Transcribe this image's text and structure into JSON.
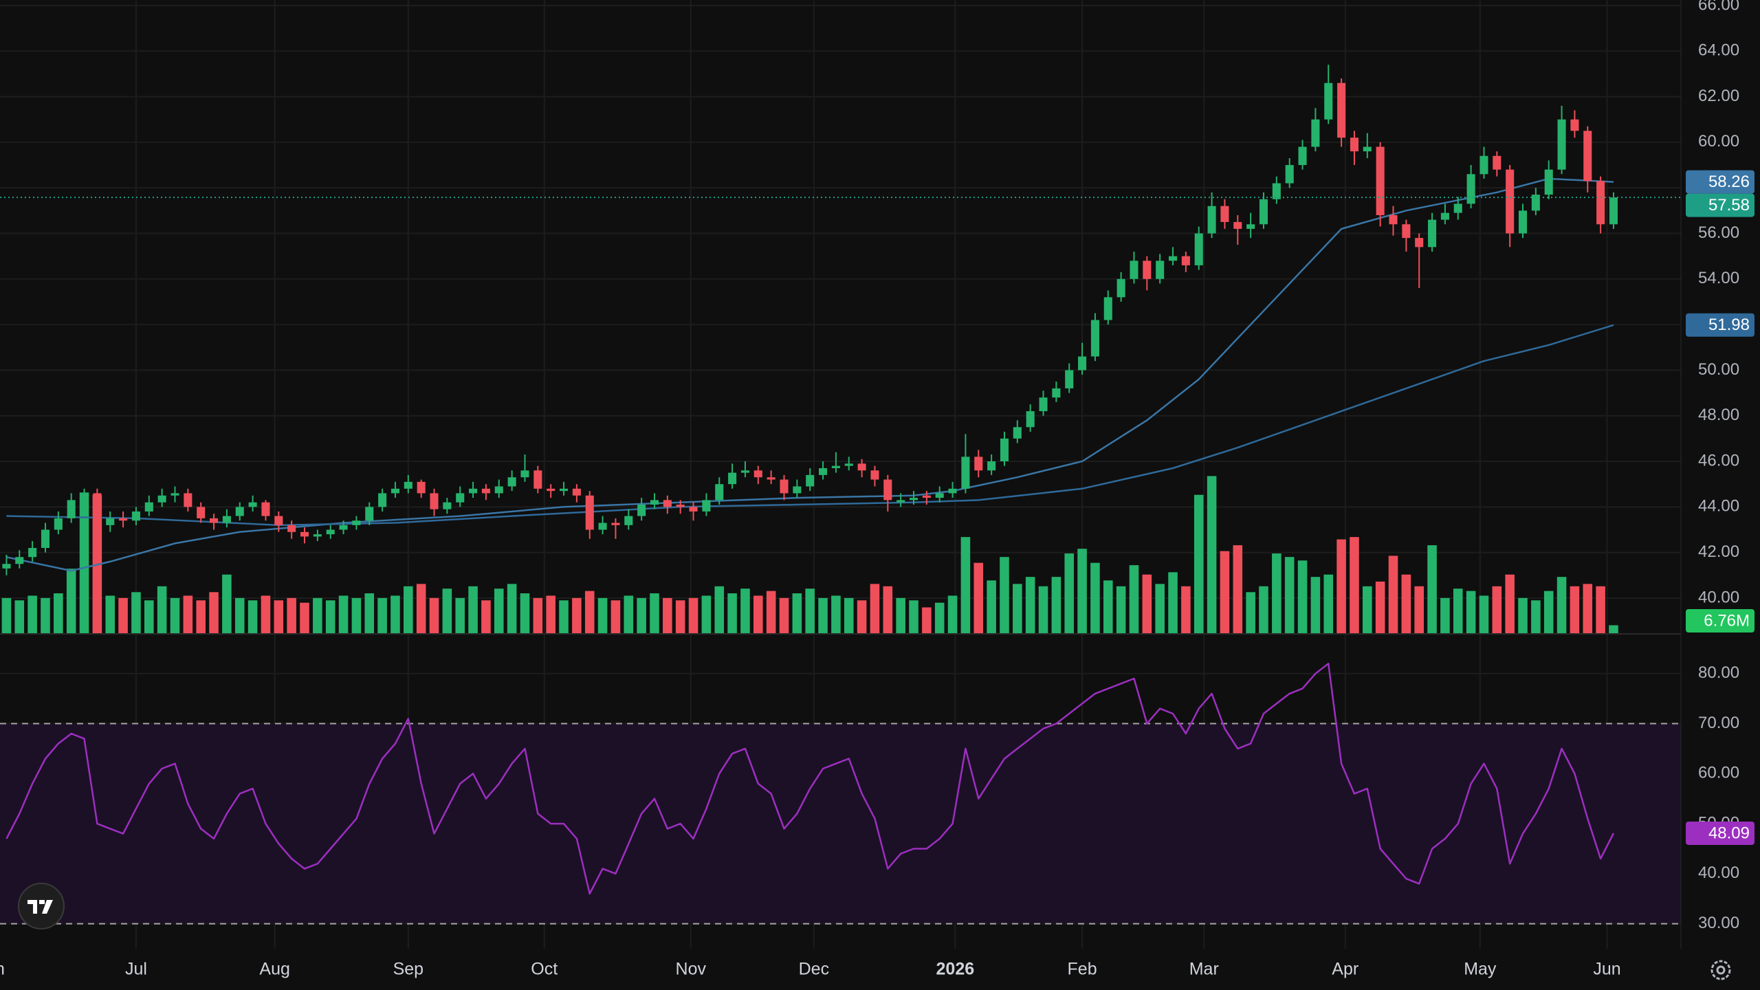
{
  "chart_data": {
    "type": "candlestick",
    "up_color": "#26b36c",
    "down_color": "#ef4f5a",
    "grid": true,
    "xlim": [
      -0.5,
      129.2
    ],
    "xticks": [
      {
        "value": -1.2,
        "label": "Jun"
      },
      {
        "value": 10,
        "label": "Jul"
      },
      {
        "value": 20.7,
        "label": "Aug"
      },
      {
        "value": 31,
        "label": "Sep"
      },
      {
        "value": 41.5,
        "label": "Oct"
      },
      {
        "value": 52.8,
        "label": "Nov"
      },
      {
        "value": 62.3,
        "label": "Dec"
      },
      {
        "value": 73.2,
        "label": "2026"
      },
      {
        "value": 83,
        "label": "Feb"
      },
      {
        "value": 92.4,
        "label": "Mar"
      },
      {
        "value": 103.3,
        "label": "Apr"
      },
      {
        "value": 113.7,
        "label": "May"
      },
      {
        "value": 123.5,
        "label": "Jun"
      }
    ],
    "ylim": [
      38.46,
      66.24
    ],
    "yticks": [
      {
        "value": 40,
        "label": "40.00"
      },
      {
        "value": 42,
        "label": "42.00"
      },
      {
        "value": 44,
        "label": "44.00"
      },
      {
        "value": 46,
        "label": "46.00"
      },
      {
        "value": 48,
        "label": "48.00"
      },
      {
        "value": 50,
        "label": "50.00"
      },
      {
        "value": 52,
        "label": "52.00"
      },
      {
        "value": 54,
        "label": "54.00"
      },
      {
        "value": 56,
        "label": "56.00"
      },
      {
        "value": 58,
        "label": "58.00"
      },
      {
        "value": 60,
        "label": "60.00"
      },
      {
        "value": 62,
        "label": "62.00"
      },
      {
        "value": 64,
        "label": "64.00"
      },
      {
        "value": 66,
        "label": "66.00"
      }
    ],
    "last_price_color": "#1f9e86",
    "candles": [
      [
        41.3,
        41.9,
        41.0,
        41.5
      ],
      [
        41.5,
        42.1,
        41.3,
        41.8
      ],
      [
        41.8,
        42.5,
        41.6,
        42.2
      ],
      [
        42.2,
        43.3,
        42.0,
        43.0
      ],
      [
        43.0,
        43.8,
        42.8,
        43.5
      ],
      [
        43.5,
        44.6,
        43.3,
        44.3
      ],
      [
        44.3,
        44.8,
        44.0,
        44.6
      ],
      [
        44.6,
        44.8,
        42.8,
        43.2
      ],
      [
        43.2,
        43.8,
        42.9,
        43.5
      ],
      [
        43.5,
        43.8,
        43.1,
        43.4
      ],
      [
        43.4,
        44.0,
        43.2,
        43.8
      ],
      [
        43.8,
        44.5,
        43.6,
        44.2
      ],
      [
        44.2,
        44.8,
        44.0,
        44.5
      ],
      [
        44.5,
        44.9,
        44.2,
        44.6
      ],
      [
        44.6,
        44.8,
        43.8,
        44.0
      ],
      [
        44.0,
        44.2,
        43.3,
        43.5
      ],
      [
        43.5,
        43.7,
        43.0,
        43.3
      ],
      [
        43.3,
        43.9,
        43.1,
        43.6
      ],
      [
        43.6,
        44.2,
        43.4,
        44.0
      ],
      [
        44.0,
        44.5,
        43.8,
        44.2
      ],
      [
        44.2,
        44.3,
        43.4,
        43.6
      ],
      [
        43.6,
        43.8,
        42.9,
        43.2
      ],
      [
        43.2,
        43.4,
        42.6,
        42.9
      ],
      [
        42.9,
        43.1,
        42.4,
        42.7
      ],
      [
        42.7,
        43.0,
        42.5,
        42.8
      ],
      [
        42.8,
        43.2,
        42.6,
        43.0
      ],
      [
        43.0,
        43.4,
        42.8,
        43.2
      ],
      [
        43.2,
        43.6,
        43.0,
        43.4
      ],
      [
        43.4,
        44.2,
        43.2,
        44.0
      ],
      [
        44.0,
        44.8,
        43.8,
        44.6
      ],
      [
        44.6,
        45.1,
        44.4,
        44.8
      ],
      [
        44.8,
        45.4,
        44.6,
        45.1
      ],
      [
        45.1,
        45.2,
        44.4,
        44.6
      ],
      [
        44.6,
        44.8,
        43.6,
        43.9
      ],
      [
        43.9,
        44.4,
        43.7,
        44.2
      ],
      [
        44.2,
        44.9,
        44.0,
        44.6
      ],
      [
        44.6,
        45.1,
        44.4,
        44.8
      ],
      [
        44.8,
        45.0,
        44.3,
        44.6
      ],
      [
        44.6,
        45.2,
        44.4,
        44.9
      ],
      [
        44.9,
        45.6,
        44.7,
        45.3
      ],
      [
        45.3,
        46.3,
        45.1,
        45.6
      ],
      [
        45.6,
        45.8,
        44.6,
        44.8
      ],
      [
        44.8,
        45.0,
        44.4,
        44.7
      ],
      [
        44.7,
        45.1,
        44.5,
        44.8
      ],
      [
        44.8,
        45.0,
        44.2,
        44.5
      ],
      [
        44.5,
        44.7,
        42.6,
        43.0
      ],
      [
        43.0,
        43.6,
        42.8,
        43.3
      ],
      [
        43.3,
        43.5,
        42.6,
        43.2
      ],
      [
        43.2,
        43.9,
        43.0,
        43.6
      ],
      [
        43.6,
        44.4,
        43.4,
        44.1
      ],
      [
        44.1,
        44.6,
        43.9,
        44.3
      ],
      [
        44.3,
        44.5,
        43.7,
        44.0
      ],
      [
        44.1,
        44.3,
        43.7,
        44.0
      ],
      [
        44.0,
        44.2,
        43.4,
        43.8
      ],
      [
        43.8,
        44.6,
        43.6,
        44.3
      ],
      [
        44.3,
        45.3,
        44.1,
        45.0
      ],
      [
        45.0,
        45.9,
        44.8,
        45.5
      ],
      [
        45.5,
        46.0,
        45.3,
        45.6
      ],
      [
        45.6,
        45.8,
        45.0,
        45.3
      ],
      [
        45.3,
        45.6,
        45.0,
        45.2
      ],
      [
        45.2,
        45.4,
        44.3,
        44.6
      ],
      [
        44.6,
        45.2,
        44.4,
        44.9
      ],
      [
        44.9,
        45.7,
        44.7,
        45.4
      ],
      [
        45.4,
        46.0,
        45.2,
        45.7
      ],
      [
        45.7,
        46.4,
        45.5,
        45.8
      ],
      [
        45.8,
        46.2,
        45.6,
        45.9
      ],
      [
        45.9,
        46.1,
        45.3,
        45.6
      ],
      [
        45.6,
        45.8,
        44.9,
        45.2
      ],
      [
        45.2,
        45.4,
        43.8,
        44.3
      ],
      [
        44.2,
        44.6,
        44.0,
        44.3
      ],
      [
        44.3,
        44.7,
        44.1,
        44.4
      ],
      [
        44.5,
        44.7,
        44.1,
        44.4
      ],
      [
        44.4,
        44.9,
        44.2,
        44.6
      ],
      [
        44.6,
        45.1,
        44.4,
        44.8
      ],
      [
        44.8,
        47.2,
        44.6,
        46.2
      ],
      [
        46.2,
        46.5,
        45.3,
        45.6
      ],
      [
        45.6,
        46.3,
        45.4,
        46.0
      ],
      [
        46.0,
        47.3,
        45.8,
        47.0
      ],
      [
        47.0,
        47.8,
        46.8,
        47.5
      ],
      [
        47.5,
        48.5,
        47.3,
        48.2
      ],
      [
        48.2,
        49.1,
        48.0,
        48.8
      ],
      [
        48.8,
        49.5,
        48.6,
        49.2
      ],
      [
        49.2,
        50.3,
        49.0,
        50.0
      ],
      [
        50.0,
        51.2,
        49.8,
        50.6
      ],
      [
        50.6,
        52.5,
        50.4,
        52.2
      ],
      [
        52.2,
        53.5,
        52.0,
        53.2
      ],
      [
        53.2,
        54.3,
        53.0,
        54.0
      ],
      [
        54.0,
        55.2,
        53.8,
        54.8
      ],
      [
        54.8,
        55.0,
        53.5,
        54.0
      ],
      [
        54.0,
        55.1,
        53.8,
        54.8
      ],
      [
        54.8,
        55.4,
        54.6,
        55.0
      ],
      [
        55.0,
        55.2,
        54.3,
        54.6
      ],
      [
        54.6,
        56.3,
        54.4,
        56.0
      ],
      [
        56.0,
        57.8,
        55.8,
        57.2
      ],
      [
        57.2,
        57.5,
        56.2,
        56.5
      ],
      [
        56.5,
        56.8,
        55.5,
        56.2
      ],
      [
        56.2,
        56.9,
        55.8,
        56.4
      ],
      [
        56.4,
        57.8,
        56.2,
        57.5
      ],
      [
        57.5,
        58.5,
        57.3,
        58.2
      ],
      [
        58.2,
        59.3,
        58.0,
        59.0
      ],
      [
        59.0,
        60.1,
        58.8,
        59.8
      ],
      [
        59.8,
        61.5,
        59.6,
        61.0
      ],
      [
        61.0,
        63.4,
        60.8,
        62.6
      ],
      [
        62.6,
        62.8,
        59.8,
        60.2
      ],
      [
        60.2,
        60.5,
        59.0,
        59.6
      ],
      [
        59.6,
        60.4,
        59.3,
        59.8
      ],
      [
        59.8,
        60.0,
        56.3,
        56.8
      ],
      [
        56.8,
        57.2,
        55.9,
        56.4
      ],
      [
        56.4,
        56.6,
        55.2,
        55.8
      ],
      [
        55.8,
        56.0,
        53.6,
        55.4
      ],
      [
        55.4,
        56.9,
        55.2,
        56.6
      ],
      [
        56.6,
        57.3,
        56.4,
        56.9
      ],
      [
        56.9,
        57.6,
        56.6,
        57.3
      ],
      [
        57.3,
        59.0,
        57.1,
        58.6
      ],
      [
        58.6,
        59.8,
        58.4,
        59.4
      ],
      [
        59.4,
        59.6,
        58.5,
        58.8
      ],
      [
        58.8,
        59.0,
        55.4,
        56.0
      ],
      [
        56.0,
        57.3,
        55.8,
        57.0
      ],
      [
        57.0,
        58.0,
        56.8,
        57.7
      ],
      [
        57.7,
        59.2,
        57.5,
        58.8
      ],
      [
        58.8,
        61.6,
        58.6,
        61.0
      ],
      [
        61.0,
        61.4,
        60.2,
        60.5
      ],
      [
        60.5,
        60.7,
        57.8,
        58.3
      ],
      [
        58.3,
        58.5,
        56.0,
        56.4
      ],
      [
        56.4,
        57.8,
        56.2,
        57.58
      ]
    ],
    "volume": {
      "color": "#22c55e",
      "ylim": [
        0,
        540
      ],
      "value_labels": {
        "124": "6.76M"
      },
      "values": [
        30,
        28,
        32,
        30,
        34,
        55,
        120,
        118,
        32,
        30,
        35,
        28,
        40,
        30,
        32,
        28,
        35,
        50,
        30,
        28,
        32,
        28,
        30,
        26,
        30,
        28,
        32,
        30,
        34,
        30,
        32,
        40,
        42,
        30,
        38,
        30,
        40,
        28,
        38,
        42,
        34,
        30,
        32,
        28,
        30,
        36,
        30,
        28,
        32,
        30,
        34,
        30,
        28,
        30,
        32,
        40,
        34,
        38,
        32,
        36,
        30,
        34,
        38,
        30,
        32,
        30,
        28,
        42,
        40,
        30,
        28,
        22,
        26,
        32,
        82,
        60,
        45,
        65,
        42,
        48,
        40,
        48,
        68,
        72,
        60,
        45,
        40,
        58,
        50,
        42,
        52,
        40,
        118,
        134,
        70,
        75,
        35,
        40,
        68,
        65,
        62,
        48,
        50,
        80,
        82,
        40,
        44,
        66,
        50,
        40,
        75,
        30,
        38,
        36,
        32,
        40,
        50,
        30,
        28,
        36,
        48,
        40,
        42,
        40,
        6.76
      ]
    },
    "moving_averages": [
      {
        "color": "#3a76a6",
        "x": [
          0,
          5,
          8,
          13,
          18,
          26,
          35,
          43,
          52,
          61,
          70,
          73,
          78,
          83,
          88,
          92,
          97,
          103,
          108,
          115,
          119,
          124
        ],
        "values": [
          41.8,
          41.2,
          41.6,
          42.4,
          42.9,
          43.3,
          43.6,
          44.0,
          44.2,
          44.4,
          44.5,
          44.7,
          45.3,
          46.0,
          47.8,
          49.6,
          52.6,
          56.2,
          57.0,
          57.8,
          58.4,
          58.26
        ]
      },
      {
        "color": "#2f6a9a",
        "x": [
          0,
          10,
          21,
          30,
          39,
          52,
          61,
          70,
          75,
          83,
          90,
          95,
          103,
          108,
          114,
          119,
          124
        ],
        "values": [
          43.6,
          43.5,
          43.2,
          43.3,
          43.6,
          44.0,
          44.1,
          44.2,
          44.3,
          44.8,
          45.7,
          46.6,
          48.2,
          49.2,
          50.4,
          51.1,
          51.98
        ]
      }
    ],
    "rsi": {
      "color": "#9c2fc0",
      "ylim": [
        25,
        87.8
      ],
      "upper_band": 70,
      "lower_band": 30,
      "yticks": [
        {
          "value": 30,
          "label": "30.00"
        },
        {
          "value": 40,
          "label": "40.00"
        },
        {
          "value": 50,
          "label": "50.00"
        },
        {
          "value": 60,
          "label": "60.00"
        },
        {
          "value": 70,
          "label": "70.00"
        },
        {
          "value": 80,
          "label": "80.00"
        }
      ],
      "values": [
        47,
        52,
        58,
        63,
        66,
        68,
        67,
        50,
        49,
        48,
        53,
        58,
        61,
        62,
        54,
        49,
        47,
        52,
        56,
        57,
        50,
        46,
        43,
        41,
        42,
        45,
        48,
        51,
        58,
        63,
        66,
        71,
        58,
        48,
        53,
        58,
        60,
        55,
        58,
        62,
        65,
        52,
        50,
        50,
        47,
        36,
        41,
        40,
        46,
        52,
        55,
        49,
        50,
        47,
        53,
        60,
        64,
        65,
        58,
        56,
        49,
        52,
        57,
        61,
        62,
        63,
        56,
        51,
        41,
        44,
        45,
        45,
        47,
        50,
        65,
        55,
        59,
        63,
        65,
        67,
        69,
        70,
        72,
        74,
        76,
        77,
        78,
        79,
        70,
        73,
        72,
        68,
        73,
        76,
        69,
        65,
        66,
        72,
        74,
        76,
        77,
        80,
        82,
        62,
        56,
        57,
        45,
        42,
        39,
        38,
        45,
        47,
        50,
        58,
        62,
        57,
        42,
        48,
        52,
        57,
        65,
        60,
        51,
        43,
        48.09
      ]
    }
  }
}
